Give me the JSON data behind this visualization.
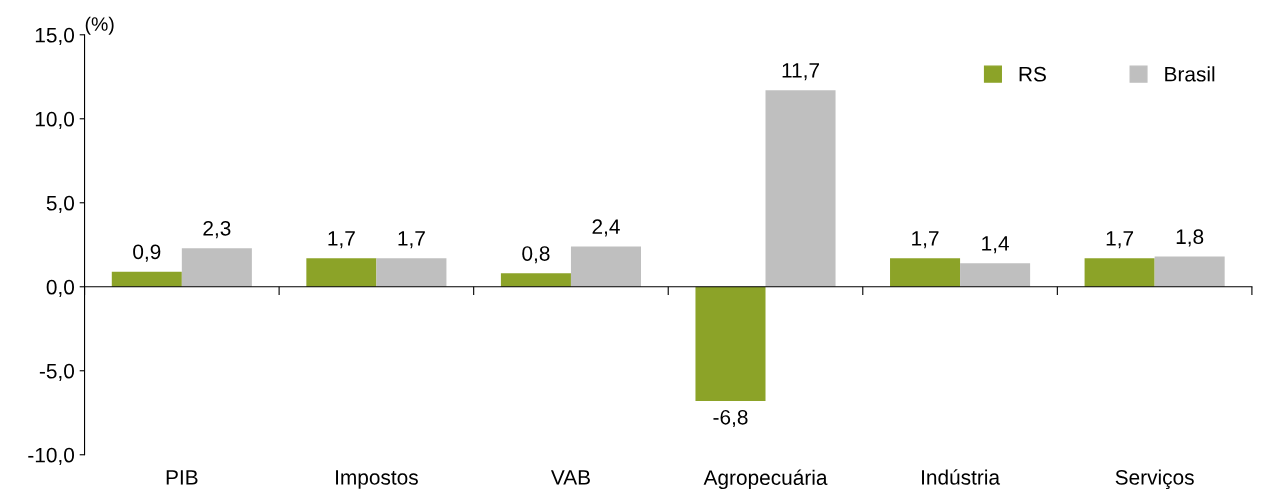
{
  "chart_data": {
    "type": "bar",
    "ylabel": "(%)",
    "categories": [
      "PIB",
      "Impostos",
      "VAB",
      "Agropecuária",
      "Indústria",
      "Serviços"
    ],
    "series": [
      {
        "name": "RS",
        "color": "#8ca328",
        "values": [
          0.9,
          1.7,
          0.8,
          -6.8,
          1.7,
          1.7
        ],
        "value_labels": [
          "0,9",
          "1,7",
          "0,8",
          "-6,8",
          "1,7",
          "1,7"
        ]
      },
      {
        "name": "Brasil",
        "color": "#bfbfbf",
        "values": [
          2.3,
          1.7,
          2.4,
          11.7,
          1.4,
          1.8
        ],
        "value_labels": [
          "2,3",
          "1,7",
          "2,4",
          "11,7",
          "1,4",
          "1,8"
        ]
      }
    ],
    "ylim": [
      -10,
      15
    ],
    "yticks": [
      {
        "value": -10,
        "label": "-10,0"
      },
      {
        "value": -5,
        "label": "-5,0"
      },
      {
        "value": 0,
        "label": "0,0"
      },
      {
        "value": 5,
        "label": "5,0"
      },
      {
        "value": 10,
        "label": "10,0"
      },
      {
        "value": 15,
        "label": "15,0"
      }
    ],
    "legend": "top right"
  }
}
